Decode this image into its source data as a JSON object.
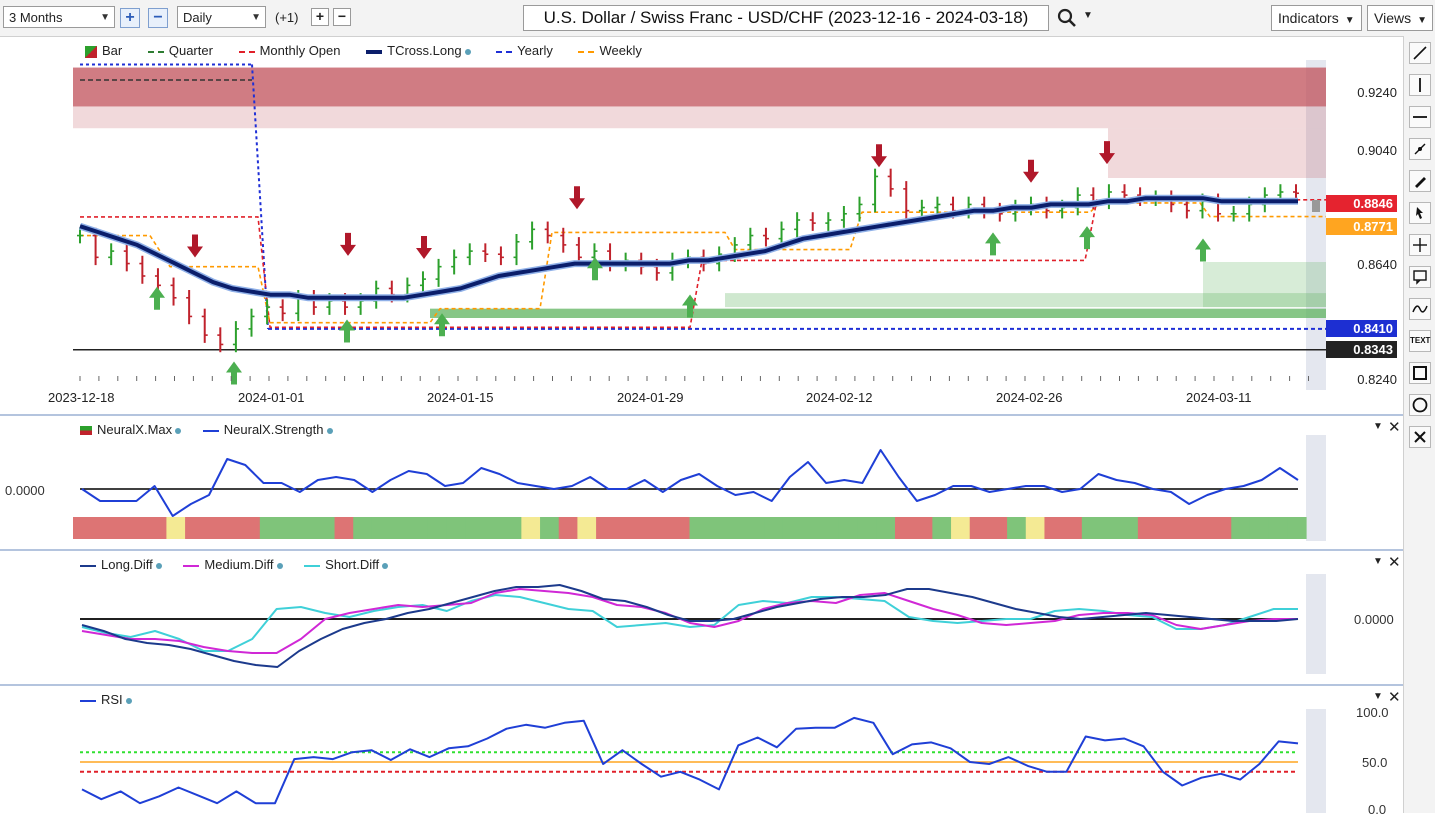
{
  "toolbar": {
    "period": "3 Months",
    "interval": "Daily",
    "offset": "(+1)",
    "title": "U.S. Dollar / Swiss Franc - USD/CHF (2023-12-16 - 2024-03-18)",
    "indicators_label": "Indicators",
    "views_label": "Views"
  },
  "colors": {
    "up": "#2ca02c",
    "down": "#c0222c",
    "tcross": "#0b1e6b",
    "quarter": "#2e7d32",
    "monthly_open": "#e0202a",
    "yearly": "#1f2fd6",
    "weekly": "#ff9a00",
    "resistance_zone": "#c0505a",
    "support_zone": "#5fb35f"
  },
  "price_pane": {
    "legend": [
      "Bar",
      "Quarter",
      "Monthly Open",
      "TCross.Long",
      "Yearly",
      "Weekly"
    ],
    "price_axis": [
      "0.9240",
      "0.9040",
      "0.8640",
      "0.8240"
    ],
    "date_axis": [
      "2023-12-18",
      "2024-01-01",
      "2024-01-15",
      "2024-01-29",
      "2024-02-12",
      "2024-02-26",
      "2024-03-11"
    ],
    "tags": {
      "last": "0.8846",
      "weekly": "0.8771",
      "yearly": "0.8410",
      "support": "0.8343"
    }
  },
  "neural_pane": {
    "legend": [
      "NeuralX.Max",
      "NeuralX.Strength"
    ],
    "zero_label": "0.0000"
  },
  "diff_pane": {
    "legend": [
      "Long.Diff",
      "Medium.Diff",
      "Short.Diff"
    ],
    "zero_label": "0.0000"
  },
  "rsi_pane": {
    "legend": [
      "RSI"
    ],
    "axis": [
      "100.0",
      "50.0",
      "0.0"
    ]
  },
  "chart_data": {
    "type": "line",
    "title": "U.S. Dollar / Swiss Franc - USD/CHF (2023-12-16 - 2024-03-18)",
    "price_range": [
      0.822,
      0.93
    ],
    "closes": [
      0.871,
      0.864,
      0.866,
      0.862,
      0.858,
      0.855,
      0.851,
      0.845,
      0.839,
      0.836,
      0.841,
      0.845,
      0.848,
      0.846,
      0.851,
      0.848,
      0.85,
      0.848,
      0.85,
      0.854,
      0.852,
      0.855,
      0.857,
      0.861,
      0.864,
      0.866,
      0.865,
      0.864,
      0.869,
      0.873,
      0.871,
      0.868,
      0.864,
      0.866,
      0.862,
      0.863,
      0.861,
      0.859,
      0.863,
      0.864,
      0.862,
      0.865,
      0.868,
      0.871,
      0.87,
      0.873,
      0.876,
      0.875,
      0.876,
      0.878,
      0.881,
      0.89,
      0.886,
      0.879,
      0.88,
      0.881,
      0.879,
      0.881,
      0.879,
      0.878,
      0.88,
      0.881,
      0.879,
      0.88,
      0.884,
      0.882,
      0.885,
      0.884,
      0.883,
      0.883,
      0.881,
      0.879,
      0.882,
      0.878,
      0.878,
      0.881,
      0.884,
      0.885,
      0.8846
    ],
    "tcross_long": [
      0.874,
      0.872,
      0.87,
      0.868,
      0.865,
      0.862,
      0.859,
      0.856,
      0.854,
      0.853,
      0.852,
      0.852,
      0.851,
      0.851,
      0.851,
      0.851,
      0.851,
      0.851,
      0.852,
      0.853,
      0.854,
      0.856,
      0.858,
      0.859,
      0.86,
      0.861,
      0.862,
      0.862,
      0.862,
      0.862,
      0.862,
      0.862,
      0.863,
      0.863,
      0.864,
      0.865,
      0.866,
      0.868,
      0.87,
      0.871,
      0.872,
      0.873,
      0.874,
      0.875,
      0.876,
      0.877,
      0.878,
      0.879,
      0.879,
      0.88,
      0.88,
      0.881,
      0.881,
      0.881,
      0.882,
      0.882,
      0.883,
      0.883,
      0.883,
      0.883,
      0.882,
      0.882,
      0.882,
      0.882,
      0.882
    ],
    "yearly_level": 0.841,
    "support_level": 0.8343,
    "weekly_level": 0.8771,
    "neural_strength": [
      0.0,
      -0.4,
      -0.4,
      -0.4,
      0.1,
      -0.9,
      -0.5,
      -0.2,
      1.0,
      0.8,
      0.2,
      0.2,
      -0.1,
      0.3,
      0.4,
      0.3,
      -0.1,
      0.3,
      0.6,
      0.5,
      0.1,
      0.2,
      0.7,
      0.5,
      0.2,
      0.1,
      0.0,
      0.1,
      0.4,
      0.0,
      0.0,
      0.3,
      -0.1,
      0.3,
      0.5,
      0.1,
      -0.2,
      -0.1,
      -0.4,
      0.4,
      0.9,
      0.2,
      0.3,
      0.2,
      1.3,
      0.4,
      -0.4,
      -0.2,
      0.1,
      0.1,
      -0.1,
      0.0,
      0.1,
      0.1,
      -0.1,
      0.0,
      0.5,
      0.3,
      0.2,
      0.0,
      -0.1,
      -0.5,
      -0.2,
      0.0,
      0.1,
      0.3,
      0.7,
      0.3
    ],
    "neural_max_states": [
      "red",
      "red",
      "red",
      "red",
      "red",
      "yellow",
      "red",
      "red",
      "red",
      "red",
      "green",
      "green",
      "green",
      "green",
      "red",
      "green",
      "green",
      "green",
      "green",
      "green",
      "green",
      "green",
      "green",
      "green",
      "yellow",
      "green",
      "red",
      "yellow",
      "red",
      "red",
      "red",
      "red",
      "red",
      "green",
      "green",
      "green",
      "green",
      "green",
      "green",
      "green",
      "green",
      "green",
      "green",
      "green",
      "red",
      "red",
      "green",
      "yellow",
      "red",
      "red",
      "green",
      "yellow",
      "red",
      "red",
      "green",
      "green",
      "green",
      "red",
      "red",
      "red",
      "red",
      "red",
      "green",
      "green",
      "green",
      "green"
    ],
    "long_diff": [
      -0.3,
      -0.6,
      -1.0,
      -1.2,
      -1.3,
      -1.5,
      -1.8,
      -2.1,
      -2.3,
      -2.4,
      -1.6,
      -1.0,
      -0.5,
      -0.2,
      0.0,
      0.3,
      0.5,
      0.8,
      1.1,
      1.4,
      1.6,
      1.6,
      1.7,
      1.4,
      1.0,
      0.9,
      0.6,
      0.2,
      -0.1,
      -0.1,
      0.0,
      0.3,
      0.6,
      0.8,
      1.0,
      1.1,
      1.1,
      1.2,
      1.5,
      1.5,
      1.3,
      1.1,
      0.8,
      0.5,
      0.3,
      0.1,
      0.0,
      0.1,
      0.2,
      0.3,
      0.2,
      0.1,
      0.0,
      -0.1,
      -0.1,
      -0.1,
      0.0
    ],
    "medium_diff": [
      -0.6,
      -0.8,
      -1.0,
      -1.0,
      -1.1,
      -1.4,
      -1.6,
      -1.7,
      -1.7,
      -1.0,
      0.0,
      0.3,
      0.5,
      0.7,
      0.6,
      0.7,
      0.8,
      1.3,
      1.5,
      1.4,
      1.3,
      1.1,
      0.7,
      0.6,
      0.3,
      -0.2,
      -0.4,
      -0.1,
      0.5,
      0.8,
      0.9,
      0.8,
      1.2,
      1.3,
      0.9,
      0.5,
      0.2,
      -0.2,
      -0.3,
      -0.2,
      -0.1,
      0.2,
      0.3,
      0.3,
      0.2,
      -0.3,
      -0.5,
      -0.3,
      -0.1,
      0.0,
      0.0
    ],
    "short_diff": [
      -0.4,
      -0.7,
      -0.9,
      -0.6,
      -1.0,
      -1.6,
      -1.6,
      -1.0,
      0.5,
      0.6,
      0.3,
      0.1,
      0.4,
      0.6,
      0.7,
      0.4,
      0.9,
      1.2,
      1.1,
      0.8,
      0.5,
      0.4,
      -0.4,
      -0.3,
      -0.2,
      -0.4,
      -0.3,
      0.7,
      0.9,
      0.8,
      1.1,
      1.1,
      1.0,
      0.9,
      0.1,
      -0.1,
      -0.2,
      -0.1,
      0.0,
      0.0,
      0.4,
      0.5,
      0.4,
      0.2,
      0.1,
      -0.5,
      -0.5,
      -0.3,
      0.1,
      0.5,
      0.5
    ]
  },
  "rsi_values": [
    22,
    12,
    20,
    8,
    15,
    24,
    16,
    8,
    20,
    8,
    8,
    53,
    55,
    53,
    60,
    62,
    52,
    63,
    55,
    64,
    66,
    74,
    84,
    88,
    85,
    90,
    92,
    48,
    62,
    48,
    35,
    40,
    32,
    22,
    67,
    75,
    65,
    84,
    85,
    85,
    95,
    90,
    58,
    68,
    70,
    64,
    50,
    48,
    55,
    46,
    40,
    40,
    76,
    72,
    74,
    66,
    40,
    26,
    34,
    38,
    32,
    48,
    71,
    69
  ],
  "rsi_levels": {
    "upper": 60,
    "mid": 50,
    "lower": 40
  }
}
